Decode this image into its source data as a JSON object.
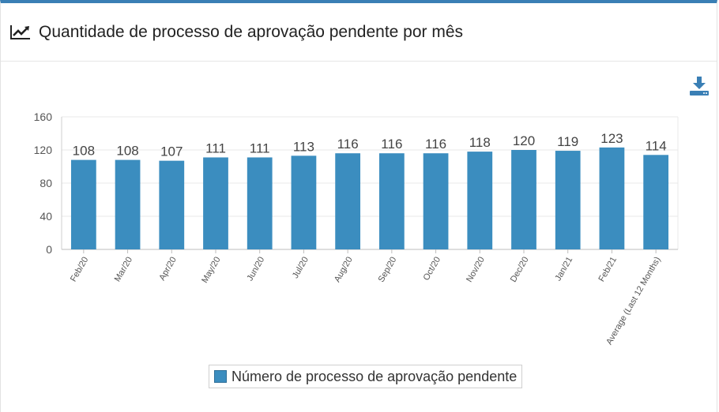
{
  "header": {
    "title": "Quantidade de processo de aprovação pendente por mês",
    "icon": "line-chart-icon",
    "download_icon": "download-icon"
  },
  "colors": {
    "accent": "#3a7fb5",
    "bar": "#3b8dbf"
  },
  "chart_data": {
    "type": "bar",
    "categories": [
      "Feb/20",
      "Mar/20",
      "Apr/20",
      "May/20",
      "Jun/20",
      "Jul/20",
      "Aug/20",
      "Sep/20",
      "Oct/20",
      "Nov/20",
      "Dec/20",
      "Jan/21",
      "Feb/21",
      "Average (Last 12 Months)"
    ],
    "series": [
      {
        "name": "Número de processo de aprovação pendente",
        "values": [
          108,
          108,
          107,
          111,
          111,
          113,
          116,
          116,
          116,
          118,
          120,
          119,
          123,
          114
        ]
      }
    ],
    "ylim": [
      0,
      160
    ],
    "yticks": [
      0,
      40,
      80,
      120,
      160
    ],
    "grid": true,
    "data_labels": true,
    "legend_position": "bottom-center"
  }
}
